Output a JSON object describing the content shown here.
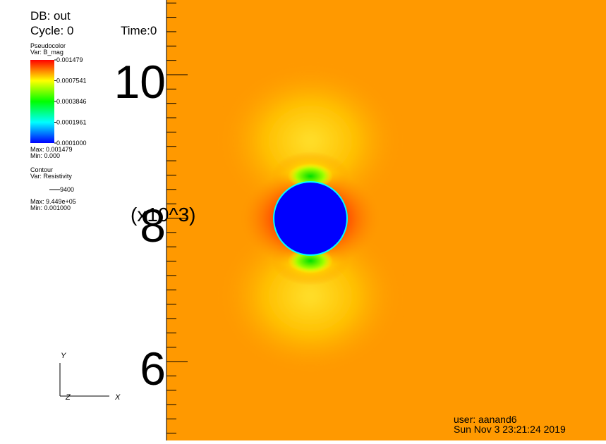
{
  "header": {
    "database": "DB: out",
    "cycle": "Cycle: 0",
    "time": "Time:0"
  },
  "pseudocolor_legend": {
    "plot": "Pseudocolor",
    "variable": "Var: B_mag",
    "labels": [
      "0.001479",
      "0.0007541",
      "0.0003846",
      "0.0001961",
      "0.0001000"
    ],
    "max": "Max:  0.001479",
    "min": "Min:  0.000"
  },
  "contour_legend": {
    "plot": "Contour",
    "variable": "Var: Resistivity",
    "level": "9400",
    "max": "Max:  9.449e+05",
    "min": "Min:  0.001000"
  },
  "axis": {
    "labels": [
      "10",
      "8",
      "6"
    ],
    "scale": "(x10^3)"
  },
  "triad": {
    "y": "Y",
    "z": "Z",
    "x": "X"
  },
  "footer": {
    "user": "user: aanand6",
    "date": "Sun Nov  3 23:21:24 2019"
  }
}
